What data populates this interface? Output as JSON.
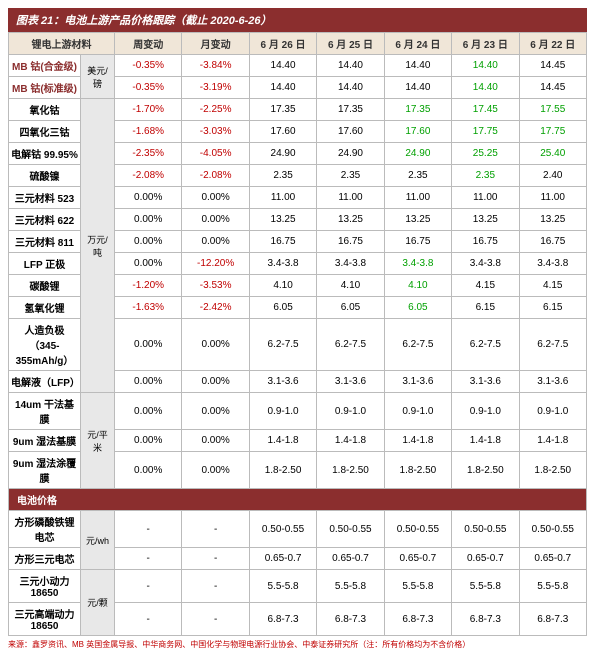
{
  "title": "图表 21：电池上游产品价格跟踪（截止 2020-6-26）",
  "headers": [
    "锂电上游材料",
    "",
    "周变动",
    "月变动",
    "6 月 26 日",
    "6 月 25 日",
    "6 月 24 日",
    "6 月 23 日",
    "6 月 22 日"
  ],
  "section1": "锂电上游材料",
  "unit1": "美元/磅",
  "unit2": "万元/吨",
  "unit3": "元/平米",
  "section2": "电池价格",
  "unit4": "元/wh",
  "unit5": "元/颗",
  "rows_a": [
    {
      "l": "MB 钴(合金级)",
      "w": "-0.35%",
      "m": "-3.84%",
      "d": [
        "14.40",
        "14.40",
        "14.40",
        "14.40",
        "14.45"
      ],
      "wc": "neg",
      "mc": "neg",
      "hl": [
        0,
        0,
        0,
        1,
        0
      ]
    },
    {
      "l": "MB 钴(标准级)",
      "w": "-0.35%",
      "m": "-3.19%",
      "d": [
        "14.40",
        "14.40",
        "14.40",
        "14.40",
        "14.45"
      ],
      "wc": "neg",
      "mc": "neg",
      "hl": [
        0,
        0,
        0,
        1,
        0
      ]
    }
  ],
  "rows_b": [
    {
      "l": "氧化钴",
      "w": "-1.70%",
      "m": "-2.25%",
      "d": [
        "17.35",
        "17.35",
        "17.35",
        "17.45",
        "17.55"
      ],
      "wc": "neg",
      "mc": "neg",
      "hl": [
        0,
        0,
        1,
        1,
        1
      ]
    },
    {
      "l": "四氧化三钴",
      "w": "-1.68%",
      "m": "-3.03%",
      "d": [
        "17.60",
        "17.60",
        "17.60",
        "17.75",
        "17.75"
      ],
      "wc": "neg",
      "mc": "neg",
      "hl": [
        0,
        0,
        1,
        1,
        1
      ]
    },
    {
      "l": "电解钴 99.95%",
      "w": "-2.35%",
      "m": "-4.05%",
      "d": [
        "24.90",
        "24.90",
        "24.90",
        "25.25",
        "25.40"
      ],
      "wc": "neg",
      "mc": "neg",
      "hl": [
        0,
        0,
        1,
        1,
        1
      ]
    },
    {
      "l": "硫酸镍",
      "w": "-2.08%",
      "m": "-2.08%",
      "d": [
        "2.35",
        "2.35",
        "2.35",
        "2.35",
        "2.40"
      ],
      "wc": "neg",
      "mc": "neg",
      "hl": [
        0,
        0,
        0,
        1,
        0
      ]
    },
    {
      "l": "三元材料 523",
      "w": "0.00%",
      "m": "0.00%",
      "d": [
        "11.00",
        "11.00",
        "11.00",
        "11.00",
        "11.00"
      ],
      "wc": "",
      "mc": "",
      "hl": [
        0,
        0,
        0,
        0,
        0
      ]
    },
    {
      "l": "三元材料 622",
      "w": "0.00%",
      "m": "0.00%",
      "d": [
        "13.25",
        "13.25",
        "13.25",
        "13.25",
        "13.25"
      ],
      "wc": "",
      "mc": "",
      "hl": [
        0,
        0,
        0,
        0,
        0
      ]
    },
    {
      "l": "三元材料 811",
      "w": "0.00%",
      "m": "0.00%",
      "d": [
        "16.75",
        "16.75",
        "16.75",
        "16.75",
        "16.75"
      ],
      "wc": "",
      "mc": "",
      "hl": [
        0,
        0,
        0,
        0,
        0
      ]
    },
    {
      "l": "LFP 正极",
      "w": "0.00%",
      "m": "-12.20%",
      "d": [
        "3.4-3.8",
        "3.4-3.8",
        "3.4-3.8",
        "3.4-3.8",
        "3.4-3.8"
      ],
      "wc": "",
      "mc": "neg",
      "hl": [
        0,
        0,
        1,
        0,
        0
      ]
    },
    {
      "l": "碳酸锂",
      "w": "-1.20%",
      "m": "-3.53%",
      "d": [
        "4.10",
        "4.10",
        "4.10",
        "4.15",
        "4.15"
      ],
      "wc": "neg",
      "mc": "neg",
      "hl": [
        0,
        0,
        1,
        0,
        0
      ]
    },
    {
      "l": "氢氧化锂",
      "w": "-1.63%",
      "m": "-2.42%",
      "d": [
        "6.05",
        "6.05",
        "6.05",
        "6.15",
        "6.15"
      ],
      "wc": "neg",
      "mc": "neg",
      "hl": [
        0,
        0,
        1,
        0,
        0
      ]
    },
    {
      "l": "人造负极（345-355mAh/g）",
      "w": "0.00%",
      "m": "0.00%",
      "d": [
        "6.2-7.5",
        "6.2-7.5",
        "6.2-7.5",
        "6.2-7.5",
        "6.2-7.5"
      ],
      "wc": "",
      "mc": "",
      "hl": [
        0,
        0,
        0,
        0,
        0
      ]
    },
    {
      "l": "电解液（LFP）",
      "w": "0.00%",
      "m": "0.00%",
      "d": [
        "3.1-3.6",
        "3.1-3.6",
        "3.1-3.6",
        "3.1-3.6",
        "3.1-3.6"
      ],
      "wc": "",
      "mc": "",
      "hl": [
        0,
        0,
        0,
        0,
        0
      ]
    }
  ],
  "rows_c": [
    {
      "l": "14um 干法基膜",
      "w": "0.00%",
      "m": "0.00%",
      "d": [
        "0.9-1.0",
        "0.9-1.0",
        "0.9-1.0",
        "0.9-1.0",
        "0.9-1.0"
      ],
      "wc": "",
      "mc": "",
      "hl": [
        0,
        0,
        0,
        0,
        0
      ]
    },
    {
      "l": "9um 湿法基膜",
      "w": "0.00%",
      "m": "0.00%",
      "d": [
        "1.4-1.8",
        "1.4-1.8",
        "1.4-1.8",
        "1.4-1.8",
        "1.4-1.8"
      ],
      "wc": "",
      "mc": "",
      "hl": [
        0,
        0,
        0,
        0,
        0
      ]
    },
    {
      "l": "9um 湿法涂覆膜",
      "w": "0.00%",
      "m": "0.00%",
      "d": [
        "1.8-2.50",
        "1.8-2.50",
        "1.8-2.50",
        "1.8-2.50",
        "1.8-2.50"
      ],
      "wc": "",
      "mc": "",
      "hl": [
        0,
        0,
        0,
        0,
        0
      ]
    }
  ],
  "rows_d": [
    {
      "l": "方形磷酸铁锂电芯",
      "w": "-",
      "m": "-",
      "d": [
        "0.50-0.55",
        "0.50-0.55",
        "0.50-0.55",
        "0.50-0.55",
        "0.50-0.55"
      ]
    },
    {
      "l": "方形三元电芯",
      "w": "-",
      "m": "-",
      "d": [
        "0.65-0.7",
        "0.65-0.7",
        "0.65-0.7",
        "0.65-0.7",
        "0.65-0.7"
      ]
    }
  ],
  "rows_e": [
    {
      "l": "三元小动力 18650",
      "w": "-",
      "m": "-",
      "d": [
        "5.5-5.8",
        "5.5-5.8",
        "5.5-5.8",
        "5.5-5.8",
        "5.5-5.8"
      ]
    },
    {
      "l": "三元高端动力 18650",
      "w": "-",
      "m": "-",
      "d": [
        "6.8-7.3",
        "6.8-7.3",
        "6.8-7.3",
        "6.8-7.3",
        "6.8-7.3"
      ]
    }
  ],
  "source": "来源：鑫罗资讯、MB 英国金属导报、中华商务网、中国化学与物理电源行业协会、中泰证券研究所（注：所有价格均为不含价格）"
}
